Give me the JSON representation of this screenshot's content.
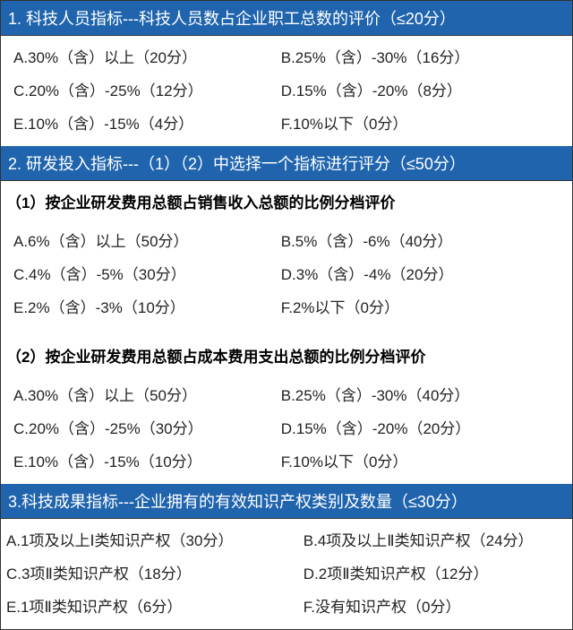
{
  "colors": {
    "header_bg": "#1f64ad",
    "header_text": "#ffffff",
    "body_text": "#222222",
    "border": "#333333",
    "background": "#ffffff"
  },
  "typography": {
    "header_fontsize": 18,
    "body_fontsize": 17,
    "subheader_weight": "bold"
  },
  "section1": {
    "title": "1. 科技人员指标---科技人员数占企业职工总数的评价（≤20分）",
    "options": [
      {
        "a": "A.30%（含）以上（20分）",
        "b": "B.25%（含）-30%（16分）"
      },
      {
        "a": "C.20%（含）-25%（12分）",
        "b": "D.15%（含）-20%（8分）"
      },
      {
        "a": "E.10%（含）-15%（4分）",
        "b": "F.10%以下（0分）"
      }
    ]
  },
  "section2": {
    "title": "2. 研发投入指标---（1）（2）中选择一个指标进行评分（≤50分）",
    "sub1": {
      "heading": "（1）按企业研发费用总额占销售收入总额的比例分档评价",
      "options": [
        {
          "a": "A.6%（含）以上（50分）",
          "b": "B.5%（含）-6%（40分）"
        },
        {
          "a": "C.4%（含）-5%（30分）",
          "b": "D.3%（含）-4%（20分）"
        },
        {
          "a": "E.2%（含）-3%（10分）",
          "b": "F.2%以下（0分）"
        }
      ]
    },
    "sub2": {
      "heading": "（2）按企业研发费用总额占成本费用支出总额的比例分档评价",
      "options": [
        {
          "a": "A.30%（含）以上（50分）",
          "b": "B.25%（含）-30%（40分）"
        },
        {
          "a": "C.20%（含）-25%（30分）",
          "b": "D.15%（含）-20%（20分）"
        },
        {
          "a": "E.10%（含）-15%（10分）",
          "b": "F.10%以下（0分）"
        }
      ]
    }
  },
  "section3": {
    "title": "3.科技成果指标---企业拥有的有效知识产权类别及数量（≤30分）",
    "options": [
      {
        "a": "A.1项及以上Ⅰ类知识产权（30分）",
        "b": "B.4项及以上Ⅱ类知识产权（24分）"
      },
      {
        "a": "C.3项Ⅱ类知识产权（18分）",
        "b": "D.2项Ⅱ类知识产权（12分）"
      },
      {
        "a": "E.1项Ⅱ类知识产权（6分）",
        "b": "F.没有知识产权（0分）"
      }
    ]
  }
}
